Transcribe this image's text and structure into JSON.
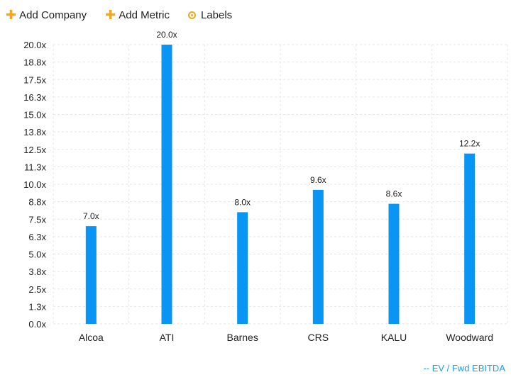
{
  "toolbar": {
    "add_company": "Add Company",
    "add_metric": "Add Metric",
    "labels": "Labels"
  },
  "legend": {
    "metric": "-- EV / Fwd EBITDA"
  },
  "colors": {
    "bar": "#0a95f5",
    "accent": "#f2a623",
    "legend": "#1e9ee8",
    "grid": "#e6e6e6"
  },
  "chart_data": {
    "type": "bar",
    "categories": [
      "Alcoa",
      "ATI",
      "Barnes",
      "CRS",
      "KALU",
      "Woodward"
    ],
    "values": [
      7.0,
      20.0,
      8.0,
      9.6,
      8.6,
      12.2
    ],
    "data_labels": [
      "7.0x",
      "20.0x",
      "8.0x",
      "9.6x",
      "8.6x",
      "12.2x"
    ],
    "yticks": [
      "0.0x",
      "1.3x",
      "2.5x",
      "3.8x",
      "5.0x",
      "6.3x",
      "7.5x",
      "8.8x",
      "10.0x",
      "11.3x",
      "12.5x",
      "13.8x",
      "15.0x",
      "16.3x",
      "17.5x",
      "18.8x",
      "20.0x"
    ],
    "ylim": [
      0,
      20
    ],
    "grid": true,
    "legend_position": "bottom-right"
  }
}
